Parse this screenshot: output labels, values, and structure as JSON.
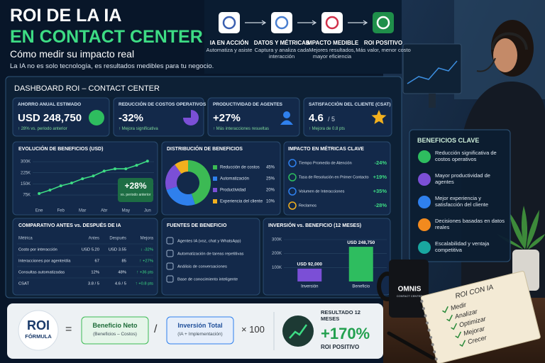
{
  "header": {
    "title_line1": "ROI DE LA IA",
    "title_line2": "EN CONTACT CENTER",
    "subtitle": "Cómo medir su impacto real",
    "tagline": "La IA no es solo tecnología, es resultados medibles para tu negocio."
  },
  "steps": [
    {
      "title": "IA EN ACCIÓN",
      "text": "Automatiza y asiste"
    },
    {
      "title": "DATOS Y MÉTRICAS",
      "text": "Captura y analiza cada interacción"
    },
    {
      "title": "IMPACTO MEDIBLE",
      "text": "Mejores resultados, mayor eficiencia"
    },
    {
      "title": "ROI POSITIVO",
      "text": "Más valor, menor costo"
    }
  ],
  "dashboard": {
    "title": "DASHBOARD ROI – CONTACT CENTER",
    "kpis": [
      {
        "label": "AHORRO ANUAL ESTIMADO",
        "value": "USD 248,750",
        "note": "↑ 28% vs. periodo anterior"
      },
      {
        "label": "REDUCCIÓN DE COSTOS OPERATIVOS",
        "value": "-32%",
        "note": "↑ Mejora significativa"
      },
      {
        "label": "PRODUCTIVIDAD DE AGENTES",
        "value": "+27%",
        "note": "↑ Más interacciones resueltas"
      },
      {
        "label": "SATISFACCIÓN DEL CLIENTE (CSAT)",
        "value": "4.6",
        "suffix": "/ 5",
        "note": "↑ Mejora de 0.8 pts"
      }
    ],
    "evolution": {
      "type": "line",
      "title": "EVOLUCIÓN DE BENEFICIOS (USD)",
      "x": [
        1,
        1.5,
        2,
        2.5,
        3,
        3.5,
        4,
        4.5,
        5,
        5.5,
        6
      ],
      "xlim": [
        0.7,
        6.3
      ],
      "xticks": [
        {
          "value": 1,
          "label": "Ene"
        },
        {
          "value": 2,
          "label": "Feb"
        },
        {
          "value": 3,
          "label": "Mar"
        },
        {
          "value": 4,
          "label": "Abr"
        },
        {
          "value": 5,
          "label": "May"
        },
        {
          "value": 6,
          "label": "Jun"
        }
      ],
      "ylim": [
        0,
        320
      ],
      "yticks": [
        {
          "value": 75,
          "label": "75K"
        },
        {
          "value": 150,
          "label": "150K"
        },
        {
          "value": 225,
          "label": "225K"
        },
        {
          "value": 300,
          "label": "300K"
        }
      ],
      "grid": true,
      "series": [
        {
          "color": "#3ddc84",
          "values": [
            85,
            108,
            137,
            156,
            185,
            204,
            237,
            252,
            252,
            276,
            304
          ]
        }
      ],
      "annotation": "+28%",
      "annotation_note": "vs. periodo anterior"
    },
    "distribution": {
      "type": "pie",
      "title": "DISTRIBUCIÓN DE BENEFICIOS",
      "categories": [
        "Reducción de costos",
        "Automatización",
        "Productividad",
        "Experiencia del cliente"
      ],
      "values": [
        45,
        25,
        20,
        10
      ],
      "value_labels": [
        "45%",
        "25%",
        "20%",
        "10%"
      ],
      "colors": [
        "#3cba54",
        "#2f80ed",
        "#7b4fd6",
        "#f2b01e"
      ]
    },
    "impact": {
      "title": "IMPACTO EN MÉTRICAS CLAVE",
      "rows": [
        {
          "metric": "Tiempo Promedio de Atención",
          "change": "-24%"
        },
        {
          "metric": "Tasa de Resolución en Primer Contacto",
          "change": "+19%"
        },
        {
          "metric": "Volumen de Interacciones",
          "change": "+35%"
        },
        {
          "metric": "Reclamos",
          "change": "-28%"
        }
      ]
    },
    "comparison": {
      "title": "COMPARATIVO ANTES vs. DESPUÉS DE IA",
      "columns": [
        "Métrica",
        "Antes",
        "Después",
        "Mejora"
      ],
      "rows": [
        [
          "Costo por interacción",
          "USD 5.20",
          "USD 3.55",
          "↓ -32%"
        ],
        [
          "Interacciones por agente/día",
          "67",
          "85",
          "↑ +27%"
        ],
        [
          "Consultas automatizadas",
          "12%",
          "48%",
          "↑ +36 pts"
        ],
        [
          "CSAT",
          "3.8 / 5",
          "4.6 / 5",
          "↑ +0.8 pts"
        ]
      ]
    },
    "sources": {
      "title": "FUENTES DE BENEFICIO",
      "items": [
        "Agentes IA (voz, chat y WhatsApp)",
        "Automatización de tareas repetitivas",
        "Análisis de conversaciones",
        "Base de conocimiento inteligente"
      ]
    },
    "investment": {
      "type": "bar",
      "title": "INVERSIÓN vs. BENEFICIO (12 MESES)",
      "categories": [
        "Inversión",
        "Beneficio"
      ],
      "values": [
        92000,
        248750
      ],
      "value_labels": [
        "USD 92,000",
        "USD 248,750"
      ],
      "colors": [
        "#7b4fd6",
        "#2ebd5f"
      ],
      "ylim": [
        0,
        300000
      ],
      "yticks": [
        {
          "value": 100000,
          "label": "100K"
        },
        {
          "value": 200000,
          "label": "200K"
        },
        {
          "value": 300000,
          "label": "300K"
        }
      ]
    }
  },
  "benefits": {
    "title": "BENEFICIOS CLAVE",
    "items": [
      "Reducción significativa de costos operativos",
      "Mayor productividad de agentes",
      "Mejor experiencia y satisfacción del cliente",
      "Decisiones basadas en datos reales",
      "Escalabilidad y ventaja competitiva"
    ]
  },
  "formula": {
    "roi": "ROI",
    "label": "FÓRMULA",
    "equals": "=",
    "numerator": "Beneficio Neto",
    "numerator_note": "(Beneficios – Costos)",
    "divide": "/",
    "denominator": "Inversión Total",
    "denominator_note": "(IA + Implementación)",
    "multiply": "× 100",
    "result_label": "RESULTADO 12 MESES",
    "result": "+170%",
    "result_note": "ROI POSITIVO"
  },
  "scene": {
    "mug_brand": "OMNIS",
    "mug_sub": "CONTACT CENTER",
    "notebook_title": "ROI CON IA",
    "notebook_items": [
      "Medir",
      "Analizar",
      "Optimizar",
      "Mejorar",
      "Crecer"
    ]
  }
}
